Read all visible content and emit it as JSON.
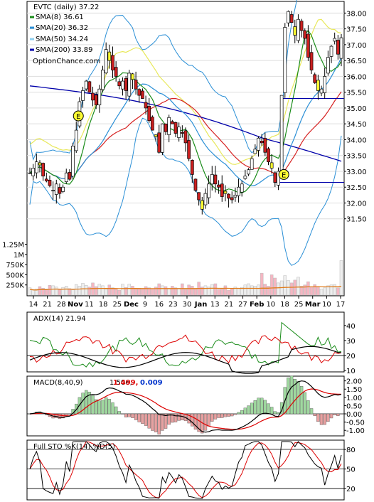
{
  "chart_data": [
    {
      "panel": "price",
      "type": "candlestick",
      "ticker_label": "EVTC (daily) 37.22",
      "watermark": "OptionChance.com",
      "legend": [
        {
          "label": "SMA(8) 36.61",
          "color": "#1a8c1a"
        },
        {
          "label": "SMA(20) 36.32",
          "color": "#2a8fd6"
        },
        {
          "label": "SMA(50) 34.24",
          "color": "#8fd0f0"
        },
        {
          "label": "SMA(200) 33.89",
          "color": "#0000aa"
        }
      ],
      "ylim": [
        31.0,
        38.3
      ],
      "y_ticks": [
        "38.00",
        "37.50",
        "37.00",
        "36.50",
        "36.00",
        "35.50",
        "35.00",
        "34.50",
        "34.00",
        "33.50",
        "33.00",
        "32.50",
        "32.00",
        "31.50"
      ],
      "x_tick_labels": [
        "14",
        "21",
        "28",
        "Nov",
        "11",
        "18",
        "25",
        "Dec",
        "9",
        "16",
        "23",
        "30",
        "Jan",
        "13",
        "21",
        "27",
        "Feb",
        "10",
        "18",
        "25",
        "Mar",
        "10",
        "17"
      ],
      "volume_ticks": [
        "1.25M",
        "1M",
        "750K",
        "500K",
        "250K"
      ],
      "volume_max": 1400000,
      "annotations": [
        "E",
        "E"
      ],
      "closes": [
        32.95,
        33.1,
        33.3,
        33.2,
        32.85,
        32.7,
        32.55,
        32.4,
        32.6,
        32.3,
        32.5,
        32.95,
        32.75,
        33.8,
        34.3,
        35.2,
        35.55,
        35.85,
        35.5,
        35.25,
        35.1,
        35.6,
        36.2,
        36.85,
        36.5,
        36.2,
        36.0,
        35.7,
        35.85,
        35.55,
        36.1,
        35.9,
        35.6,
        35.4,
        35.3,
        35.0,
        34.6,
        34.3,
        34.1,
        33.6,
        34.5,
        34.25,
        34.7,
        34.5,
        34.2,
        34.4,
        34.2,
        33.9,
        33.4,
        32.9,
        32.4,
        32.1,
        31.8,
        32.3,
        32.6,
        32.9,
        32.6,
        32.5,
        32.2,
        32.3,
        32.15,
        32.1,
        32.25,
        32.5,
        32.6,
        32.85,
        33.05,
        33.4,
        33.7,
        34.05,
        33.9,
        33.6,
        33.3,
        33.1,
        32.65,
        33.0,
        35.4,
        37.55,
        38.05,
        37.7,
        37.3,
        37.8,
        37.45,
        37.2,
        36.6,
        36.2,
        35.8,
        35.55,
        35.6,
        36.0,
        36.6,
        36.95,
        37.2,
        36.7,
        37.22
      ],
      "volumes": [
        180000,
        140000,
        150000,
        210000,
        170000,
        150000,
        240000,
        230000,
        200000,
        140000,
        190000,
        220000,
        160000,
        130000,
        260000,
        220000,
        290000,
        240000,
        200000,
        300000,
        210000,
        270000,
        230000,
        150000,
        250000,
        180000,
        150000,
        120000,
        270000,
        190000,
        270000,
        220000,
        160000,
        170000,
        150000,
        210000,
        180000,
        160000,
        200000,
        280000,
        230000,
        210000,
        150000,
        220000,
        180000,
        170000,
        280000,
        140000,
        250000,
        220000,
        160000,
        320000,
        200000,
        230000,
        200000,
        260000,
        280000,
        140000,
        150000,
        230000,
        120000,
        170000,
        200000,
        160000,
        190000,
        250000,
        280000,
        230000,
        220000,
        250000,
        540000,
        270000,
        220000,
        500000,
        420000,
        300000,
        350000,
        480000,
        360000,
        300000,
        370000,
        440000,
        220000,
        250000,
        330000,
        200000,
        260000,
        210000,
        150000,
        180000,
        230000,
        250000,
        260000,
        180000,
        850000
      ]
    },
    {
      "panel": "adx",
      "type": "line",
      "label": "ADX(14) 21.94",
      "ylim": [
        10,
        48
      ],
      "y_ticks": [
        "40",
        "30",
        "20",
        "10"
      ]
    },
    {
      "panel": "macd",
      "type": "line+histogram",
      "label": "MACD(8,40,9)",
      "values": [
        "1.506,",
        "1.499,",
        "0.009"
      ],
      "value_colors": [
        "#000000",
        "#dd0000",
        "#0033cc"
      ],
      "ylim": [
        -1.25,
        2.2
      ],
      "y_ticks": [
        "2.00",
        "1.50",
        "1.00",
        "0.50",
        "0.00",
        "-0.50",
        "-1.00"
      ]
    },
    {
      "panel": "stochastic",
      "type": "line",
      "label": "Full STO %K(14) %D(5)",
      "ylim": [
        5,
        92
      ],
      "y_ticks": [
        "80",
        "50",
        "20"
      ]
    }
  ]
}
